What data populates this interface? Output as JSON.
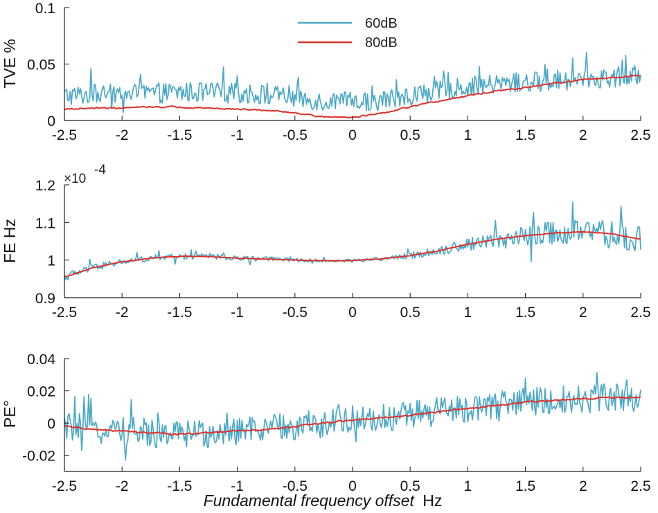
{
  "chart_data": [
    {
      "type": "line",
      "ylabel": "TVE %",
      "xlim": [
        -2.5,
        2.5
      ],
      "ylim": [
        0,
        0.1
      ],
      "xticks": [
        -2.5,
        -2,
        -1.5,
        -1,
        -0.5,
        0,
        0.5,
        1,
        1.5,
        2,
        2.5
      ],
      "xtick_labels": [
        "-2.5",
        "-2",
        "-1.5",
        "-1",
        "-0.5",
        "0",
        "0.5",
        "1",
        "1.5",
        "2",
        "2.5"
      ],
      "yticks": [
        0,
        0.05,
        0.1
      ],
      "ytick_labels": [
        "0",
        "0.05",
        "0.1"
      ],
      "legend": {
        "position": "top-center",
        "entries": [
          "60dB",
          "80dB"
        ]
      },
      "series": [
        {
          "name": "60dB",
          "color": "#4aa8c8",
          "x": [
            -2.5,
            -2.25,
            -2,
            -1.75,
            -1.5,
            -1.25,
            -1,
            -0.75,
            -0.5,
            -0.25,
            0,
            0.25,
            0.5,
            0.75,
            1,
            1.25,
            1.5,
            1.75,
            2,
            2.25,
            2.5
          ],
          "mean": [
            0.022,
            0.023,
            0.024,
            0.024,
            0.025,
            0.025,
            0.024,
            0.023,
            0.02,
            0.017,
            0.016,
            0.018,
            0.022,
            0.026,
            0.03,
            0.032,
            0.034,
            0.035,
            0.037,
            0.038,
            0.04
          ],
          "noise": 0.009
        },
        {
          "name": "80dB",
          "color": "#e0302a",
          "x": [
            -2.5,
            -2.25,
            -2,
            -1.75,
            -1.5,
            -1.25,
            -1,
            -0.75,
            -0.5,
            -0.25,
            0,
            0.25,
            0.5,
            0.75,
            1,
            1.25,
            1.5,
            1.75,
            2,
            2.25,
            2.5
          ],
          "mean": [
            0.01,
            0.011,
            0.011,
            0.012,
            0.012,
            0.011,
            0.01,
            0.009,
            0.007,
            0.003,
            0.003,
            0.006,
            0.012,
            0.017,
            0.022,
            0.026,
            0.029,
            0.033,
            0.036,
            0.038,
            0.04
          ],
          "noise": 0.0012
        }
      ]
    },
    {
      "type": "line",
      "ylabel": "FE Hz",
      "exponent_label": "×10",
      "exponent_power": "-4",
      "xlim": [
        -2.5,
        2.5
      ],
      "ylim": [
        0.9,
        1.2
      ],
      "xticks": [
        -2.5,
        -2,
        -1.5,
        -1,
        -0.5,
        0,
        0.5,
        1,
        1.5,
        2,
        2.5
      ],
      "xtick_labels": [
        "-2.5",
        "-2",
        "-1.5",
        "-1",
        "-0.5",
        "0",
        "0.5",
        "1",
        "1.5",
        "2",
        "2.5"
      ],
      "yticks": [
        0.9,
        1,
        1.1,
        1.2
      ],
      "ytick_labels": [
        "0.9",
        "1",
        "1.1",
        "1.2"
      ],
      "series": [
        {
          "name": "60dB",
          "color": "#4aa8c8",
          "x": [
            -2.5,
            -2.25,
            -2,
            -1.75,
            -1.5,
            -1.25,
            -1,
            -0.75,
            -0.5,
            -0.25,
            0,
            0.25,
            0.5,
            0.75,
            1,
            1.25,
            1.5,
            1.75,
            2,
            2.25,
            2.5
          ],
          "mean": [
            0.955,
            0.98,
            0.995,
            1.005,
            1.01,
            1.01,
            1.005,
            1.003,
            1.0,
            0.998,
            0.999,
            1.003,
            1.012,
            1.025,
            1.042,
            1.055,
            1.065,
            1.072,
            1.075,
            1.07,
            1.055
          ],
          "noise": [
            0.012,
            0.01,
            0.008,
            0.008,
            0.008,
            0.008,
            0.007,
            0.006,
            0.005,
            0.004,
            0.004,
            0.005,
            0.008,
            0.012,
            0.016,
            0.022,
            0.028,
            0.032,
            0.034,
            0.034,
            0.034
          ]
        },
        {
          "name": "80dB",
          "color": "#e0302a",
          "x": [
            -2.5,
            -2.25,
            -2,
            -1.75,
            -1.5,
            -1.25,
            -1,
            -0.75,
            -0.5,
            -0.25,
            0,
            0.25,
            0.5,
            0.75,
            1,
            1.25,
            1.5,
            1.75,
            2,
            2.25,
            2.5
          ],
          "mean": [
            0.955,
            0.98,
            0.995,
            1.005,
            1.01,
            1.01,
            1.005,
            1.003,
            1.0,
            0.998,
            0.999,
            1.003,
            1.012,
            1.025,
            1.042,
            1.055,
            1.065,
            1.072,
            1.075,
            1.07,
            1.055
          ],
          "noise": 0.0015
        }
      ]
    },
    {
      "type": "line",
      "ylabel": "PE°",
      "xlabel_italic": "Fundamental frequency offset",
      "xlabel_unit": "Hz",
      "xlim": [
        -2.5,
        2.5
      ],
      "ylim": [
        -0.03,
        0.04
      ],
      "xticks": [
        -2.5,
        -2,
        -1.5,
        -1,
        -0.5,
        0,
        0.5,
        1,
        1.5,
        2,
        2.5
      ],
      "xtick_labels": [
        "-2.5",
        "-2",
        "-1.5",
        "-1",
        "-0.5",
        "0",
        "0.5",
        "1",
        "1.5",
        "2",
        "2.5"
      ],
      "yticks": [
        -0.02,
        0,
        0.02,
        0.04
      ],
      "ytick_labels": [
        "-0.02",
        "0",
        "0.02",
        "0.04"
      ],
      "series": [
        {
          "name": "60dB",
          "color": "#4aa8c8",
          "x": [
            -2.5,
            -2.25,
            -2,
            -1.75,
            -1.5,
            -1.25,
            -1,
            -0.75,
            -0.5,
            -0.25,
            0,
            0.25,
            0.5,
            0.75,
            1,
            1.25,
            1.5,
            1.75,
            2,
            2.25,
            2.5
          ],
          "mean": [
            -0.002,
            -0.004,
            -0.005,
            -0.006,
            -0.007,
            -0.006,
            -0.005,
            -0.004,
            -0.002,
            0.0,
            0.002,
            0.003,
            0.005,
            0.007,
            0.009,
            0.011,
            0.013,
            0.014,
            0.015,
            0.016,
            0.016
          ],
          "noise": 0.009
        },
        {
          "name": "80dB",
          "color": "#e0302a",
          "x": [
            -2.5,
            -2.25,
            -2,
            -1.75,
            -1.5,
            -1.25,
            -1,
            -0.75,
            -0.5,
            -0.25,
            0,
            0.25,
            0.5,
            0.75,
            1,
            1.25,
            1.5,
            1.75,
            2,
            2.25,
            2.5
          ],
          "mean": [
            -0.002,
            -0.004,
            -0.005,
            -0.006,
            -0.007,
            -0.006,
            -0.005,
            -0.004,
            -0.002,
            0.0,
            0.002,
            0.003,
            0.005,
            0.007,
            0.009,
            0.011,
            0.013,
            0.014,
            0.015,
            0.016,
            0.016
          ],
          "noise": 0.001
        }
      ]
    }
  ]
}
